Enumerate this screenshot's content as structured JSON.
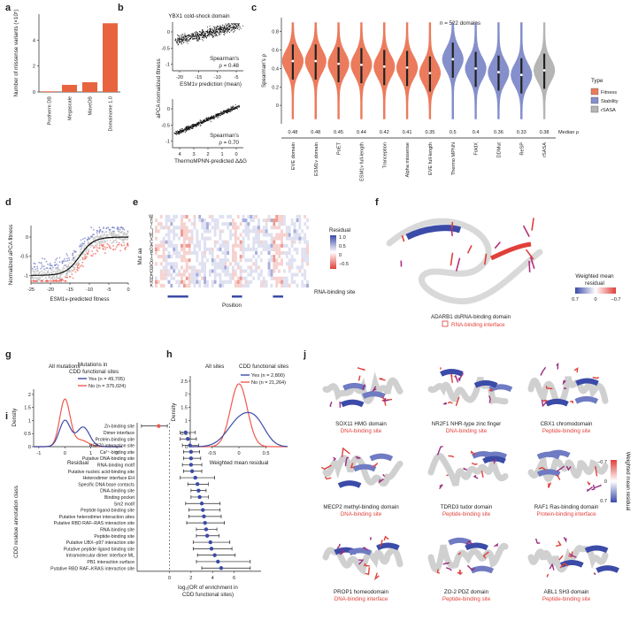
{
  "colors": {
    "fitness": "#e8643f",
    "stability": "#6f7bc2",
    "rsasa": "#a8a8a8",
    "yes": "#3b4ba8",
    "no": "#ee5a50",
    "interface": "#e0403a"
  },
  "panels": {
    "a": {
      "label": "a",
      "ylabel": "Number of missense variants (×10⁵)"
    },
    "b": {
      "label": "b",
      "title_top": "YBX1 cold-shock domain",
      "ylabel": "aPCA normalized fitness",
      "xlabel_top": "ESM1v prediction (mean)",
      "xlabel_bottom": "ThermoMPNN-predicted ΔΔG",
      "stat_top_1": "Spearman's",
      "stat_top_2": "ρ = 0.48",
      "stat_bot_1": "Spearman's",
      "stat_bot_2": "ρ = 0.70"
    },
    "c": {
      "label": "c",
      "ylabel": "Spearman's ρ",
      "annotation": "n = 522 domains",
      "median_label": "Median ρ",
      "legend_title": "Type",
      "legend": [
        "Fitness",
        "Stability",
        "rSASA"
      ]
    },
    "d": {
      "label": "d",
      "ylabel": "Normalized aPCA fitness",
      "xlabel": "ESM1v-predicted fitness"
    },
    "e": {
      "label": "e",
      "ylabel": "Mut aa",
      "xlabel": "Position",
      "legend_title": "Residual",
      "legend_ticks": [
        "1.0",
        "0.5",
        "0",
        "−0.5"
      ],
      "site_label": "RNA-binding site",
      "mut_aa": [
        "W",
        "F",
        "Y",
        "L",
        "I",
        "M",
        "V",
        "C",
        "A",
        "G",
        "P",
        "T",
        "S",
        "Q",
        "N",
        "D",
        "E",
        "H",
        "R",
        "K"
      ]
    },
    "f": {
      "label": "f",
      "legend_title_1": "Weighted mean",
      "legend_title_2": "residual",
      "legend_ticks": [
        "0.7",
        "0",
        "−0.7"
      ],
      "domain_name": "ADARB1 dsRNA-binding domain",
      "interface_label": "RNA-binding interface"
    },
    "g": {
      "label": "g",
      "title": "All mutations",
      "legend_title_1": "Mutations in",
      "legend_title_2": "CDD functional sites",
      "yes_label": "Yes (n = 49,705)",
      "no_label": "No (n = 375,024)",
      "ylabel": "Density",
      "xlabel": "Residual"
    },
    "h": {
      "label": "h",
      "title": "All sites",
      "legend_title": "CDD functional sites",
      "yes_label": "Yes (n = 2,800)",
      "no_label": "No (n = 21,264)",
      "ylabel": "Density",
      "xlabel": "Weighted mean residual"
    },
    "i": {
      "label": "i",
      "ylabel": "CDD residue annotation class",
      "xlabel_1": "log₂(OR of enrichment in",
      "xlabel_2": "CDD functional sites)"
    },
    "j": {
      "label": "j",
      "colorbar_title": "Weighted mean residual",
      "colorbar_ticks": [
        "−0.7",
        "0",
        "0.7"
      ],
      "structures": [
        {
          "name": "SOX11 HMG domain",
          "site": "DNA-binding site"
        },
        {
          "name": "NR2F1 NHR-type zinc finger",
          "site": "DNA-binding site"
        },
        {
          "name": "CBX1 chromodomain",
          "site": "Peptide-binding site"
        },
        {
          "name": "MECP2 methyl-binding domain",
          "site": "DNA-binding site"
        },
        {
          "name": "TDRD3 tudor domain",
          "site": "Peptide-binding site"
        },
        {
          "name": "RAF1 Ras-binding domain",
          "site": "Protein-binding interface"
        },
        {
          "name": "PROP1 homeodomain",
          "site": "DNA-binding interface"
        },
        {
          "name": "ZO-2 PDZ domain",
          "site": "Peptide-binding site"
        },
        {
          "name": "ABL1 SH3 domain",
          "site": "Peptide-binding site"
        }
      ]
    }
  },
  "chart_data": [
    {
      "id": "a",
      "type": "bar",
      "categories": [
        "Protherm DB",
        "Megascale",
        "MaveDB",
        "Domainome 1.0"
      ],
      "values": [
        0.05,
        0.55,
        0.75,
        5.3
      ],
      "ylim": [
        0,
        6
      ],
      "yticks": [
        0,
        2,
        4
      ]
    },
    {
      "id": "b_top",
      "type": "scatter",
      "xlim": [
        -25,
        0
      ],
      "ylim": [
        -1.2,
        0.3
      ],
      "xticks": [
        -20,
        -15,
        -10,
        -5
      ],
      "yticks": [
        -1.0,
        -0.5,
        0
      ]
    },
    {
      "id": "b_bottom",
      "type": "scatter",
      "xticks": [
        4,
        3,
        2,
        1,
        0
      ],
      "yticks": [
        -1.0,
        -0.5,
        0
      ]
    },
    {
      "id": "c",
      "type": "violin",
      "ylim": [
        -0.2,
        0.95
      ],
      "yticks": [
        0,
        0.2,
        0.4,
        0.6,
        0.8
      ],
      "categories": [
        "EVE domain",
        "ESM1v domain",
        "PoET",
        "ESM1v full-length",
        "Tranception",
        "Alpha missense",
        "EVE full-length",
        "Thermo MPNN",
        "FoldX",
        "DDMut",
        "ReSP",
        "rSASA"
      ],
      "median": [
        0.48,
        0.48,
        0.45,
        0.44,
        0.42,
        0.41,
        0.35,
        0.5,
        0.4,
        0.36,
        0.33,
        0.38
      ],
      "group": [
        "Fitness",
        "Fitness",
        "Fitness",
        "Fitness",
        "Fitness",
        "Fitness",
        "Fitness",
        "Stability",
        "Stability",
        "Stability",
        "Stability",
        "rSASA"
      ]
    },
    {
      "id": "d",
      "type": "scatter",
      "xticks": [
        -25,
        -20,
        -15,
        -10,
        -5,
        0
      ],
      "yticks": [
        -1.0,
        -0.5,
        0
      ]
    },
    {
      "id": "g",
      "type": "line",
      "xticks": [
        -1,
        0,
        1,
        2
      ],
      "yticks": [
        0,
        0.5,
        1.0,
        1.5,
        2.0
      ],
      "series": [
        {
          "name": "Yes (n = 49,705)"
        },
        {
          "name": "No (n = 375,024)"
        }
      ]
    },
    {
      "id": "h",
      "type": "line",
      "xticks": [
        -0.5,
        0,
        0.5
      ],
      "yticks": [
        0,
        0.5,
        1.0,
        1.5,
        2.0,
        2.5
      ],
      "series": [
        {
          "name": "Yes (n = 2,800)"
        },
        {
          "name": "No (n = 21,264)"
        }
      ]
    },
    {
      "id": "i",
      "type": "scatter",
      "xlim": [
        -3,
        8.5
      ],
      "xticks": [
        0,
        2,
        4,
        6
      ],
      "categories": [
        "Zn-binding site",
        "Dimer interface",
        "Protein-binding site",
        "HSP70 interaction site",
        "Ca²⁺-binding site",
        "Putative DNA-binding site",
        "RNA-binding motif",
        "Putative nucleic acid-binding site",
        "Heterodimer interface EH",
        "Specific DNA base contacts",
        "DNA-binding site",
        "Binding pocket",
        "Sm2 motif",
        "Peptide ligand-binding site",
        "Putative heterodimer interaction sites",
        "Putative RBD RAF–RAS interaction site",
        "RNA-binding site",
        "Peptide-binding site",
        "Putative UBX–p97 interaction site",
        "Putative peptide ligand binding site",
        "Intramolecular dimer interface ML",
        "PB1 interaction surface",
        "Putative RBD RAF–KRAS interaction site"
      ],
      "or": [
        -1.0,
        1.5,
        1.7,
        1.9,
        2.0,
        2.0,
        2.0,
        2.1,
        2.4,
        2.6,
        2.7,
        2.8,
        3.0,
        3.1,
        3.2,
        3.3,
        3.4,
        3.5,
        3.8,
        3.9,
        4.2,
        4.5,
        4.8
      ],
      "lo": [
        -2.6,
        1.0,
        1.0,
        1.2,
        1.3,
        1.3,
        1.2,
        1.3,
        1.0,
        1.7,
        2.0,
        2.0,
        1.5,
        1.8,
        1.8,
        1.6,
        2.5,
        2.5,
        2.2,
        2.2,
        2.6,
        2.5,
        3.0
      ],
      "hi": [
        -0.2,
        2.4,
        2.5,
        2.7,
        2.8,
        2.9,
        3.0,
        3.0,
        4.2,
        3.6,
        3.4,
        3.6,
        4.7,
        4.7,
        4.8,
        5.1,
        4.4,
        4.6,
        5.6,
        5.8,
        6.1,
        7.5,
        7.5
      ]
    }
  ]
}
